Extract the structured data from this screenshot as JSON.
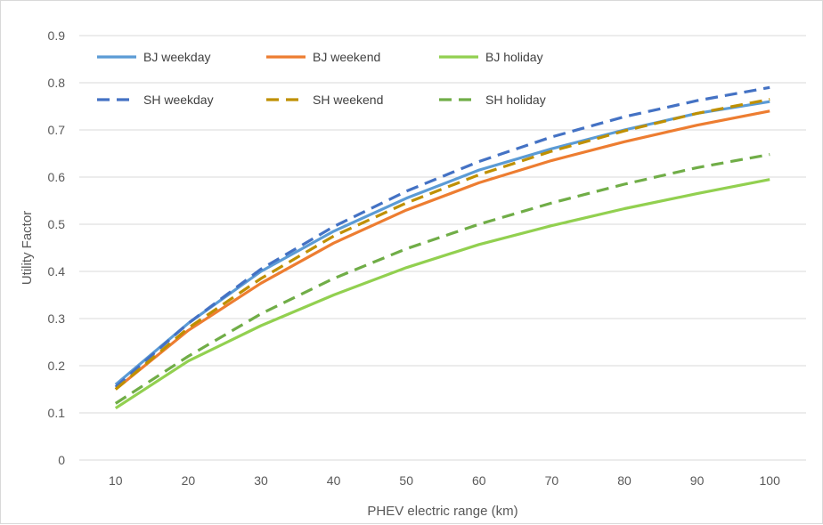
{
  "chart_data": {
    "type": "line",
    "title": "",
    "xlabel": "PHEV electric range (km)",
    "ylabel": "Utility Factor",
    "x": [
      10,
      20,
      30,
      40,
      50,
      60,
      70,
      80,
      90,
      100
    ],
    "ylim": [
      0,
      0.9
    ],
    "yticks": [
      "0",
      "0.1",
      "0.2",
      "0.3",
      "0.4",
      "0.5",
      "0.6",
      "0.7",
      "0.8",
      "0.9"
    ],
    "grid": true,
    "legend_position": "top",
    "series": [
      {
        "name": "BJ weekday",
        "color": "#5B9BD5",
        "dashed": false,
        "values": [
          0.16,
          0.29,
          0.4,
          0.485,
          0.555,
          0.615,
          0.66,
          0.7,
          0.735,
          0.76
        ]
      },
      {
        "name": "BJ weekend",
        "color": "#ED7D31",
        "dashed": false,
        "values": [
          0.15,
          0.275,
          0.375,
          0.46,
          0.53,
          0.588,
          0.635,
          0.675,
          0.71,
          0.74
        ]
      },
      {
        "name": "BJ holiday",
        "color": "#92D050",
        "dashed": false,
        "values": [
          0.11,
          0.21,
          0.285,
          0.35,
          0.408,
          0.457,
          0.497,
          0.533,
          0.565,
          0.595
        ]
      },
      {
        "name": "SH weekday",
        "color": "#4472C4",
        "dashed": true,
        "values": [
          0.155,
          0.29,
          0.405,
          0.495,
          0.57,
          0.633,
          0.685,
          0.728,
          0.762,
          0.79
        ]
      },
      {
        "name": "SH weekend",
        "color": "#BF9000",
        "dashed": true,
        "values": [
          0.15,
          0.28,
          0.385,
          0.475,
          0.545,
          0.605,
          0.655,
          0.698,
          0.735,
          0.765
        ]
      },
      {
        "name": "SH holiday",
        "color": "#70AD47",
        "dashed": true,
        "values": [
          0.12,
          0.22,
          0.31,
          0.385,
          0.448,
          0.5,
          0.545,
          0.585,
          0.62,
          0.648
        ]
      }
    ]
  }
}
